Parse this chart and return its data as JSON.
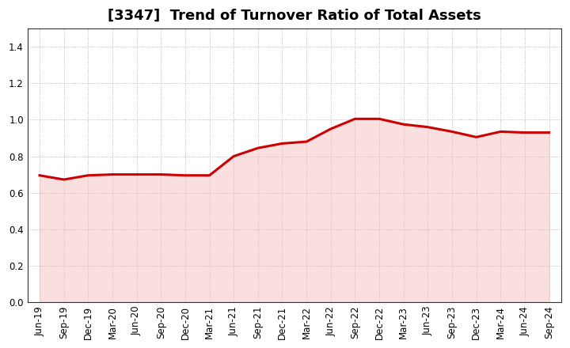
{
  "title": "[3347]  Trend of Turnover Ratio of Total Assets",
  "x_labels": [
    "Jun-19",
    "Sep-19",
    "Dec-19",
    "Mar-20",
    "Jun-20",
    "Sep-20",
    "Dec-20",
    "Mar-21",
    "Jun-21",
    "Sep-21",
    "Dec-21",
    "Mar-22",
    "Jun-22",
    "Sep-22",
    "Dec-22",
    "Mar-23",
    "Jun-23",
    "Sep-23",
    "Dec-23",
    "Mar-24",
    "Jun-24",
    "Sep-24"
  ],
  "y_values": [
    0.695,
    0.672,
    0.695,
    0.7,
    0.7,
    0.7,
    0.695,
    0.695,
    0.8,
    0.845,
    0.87,
    0.88,
    0.95,
    1.005,
    1.005,
    0.975,
    0.96,
    0.935,
    0.905,
    0.935,
    0.93,
    0.93
  ],
  "line_color": "#cc0000",
  "line_width": 2.2,
  "ylim": [
    0.0,
    1.5
  ],
  "yticks": [
    0.0,
    0.2,
    0.4,
    0.6,
    0.8,
    1.0,
    1.2,
    1.4
  ],
  "background_color": "#ffffff",
  "plot_bg_color": "#ffffff",
  "grid_color": "#aaaaaa",
  "title_fontsize": 13,
  "tick_fontsize": 8.5,
  "fill_color": "#f5b8b8",
  "fill_alpha": 0.45
}
